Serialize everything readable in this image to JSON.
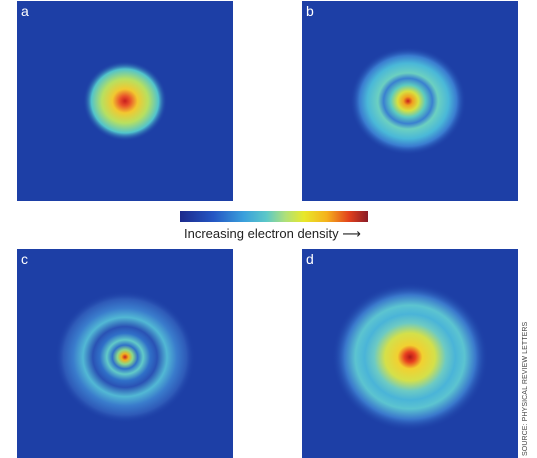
{
  "panels": {
    "a": {
      "label": "a"
    },
    "b": {
      "label": "b"
    },
    "c": {
      "label": "c"
    },
    "d": {
      "label": "d"
    }
  },
  "colorbar": {
    "label": "Increasing electron density ⟶",
    "colors": [
      "#1c2a8c",
      "#2457c4",
      "#3aa0dc",
      "#5cc8c8",
      "#aee07a",
      "#e8e82a",
      "#f5b21c",
      "#e2401c",
      "#8a1c28"
    ]
  },
  "source": "SOURCE: PHYSICAL REVIEW LETTERS"
}
